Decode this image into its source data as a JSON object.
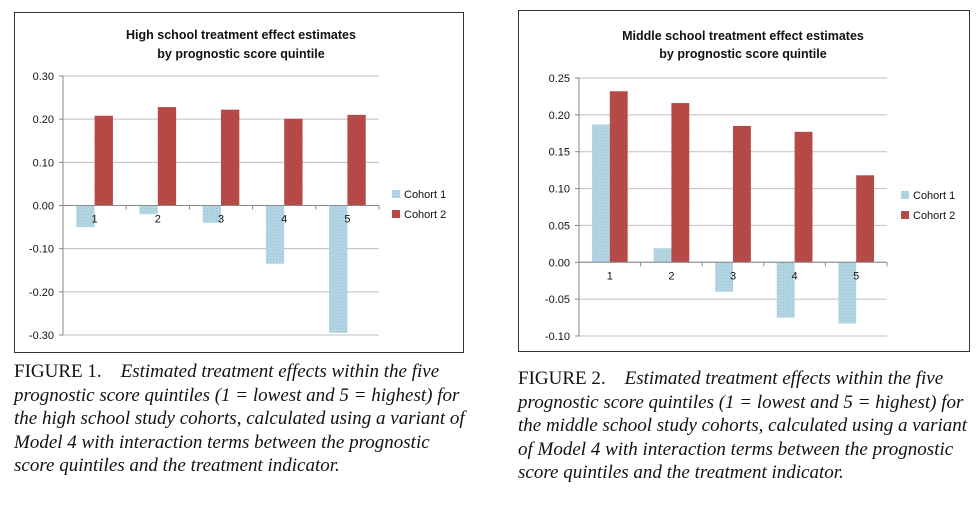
{
  "chart_data": [
    {
      "type": "bar",
      "title_lines": [
        "High school treatment effect estimates",
        "by prognostic score quintile"
      ],
      "categories": [
        "1",
        "2",
        "3",
        "4",
        "5"
      ],
      "series": [
        {
          "name": "Cohort 1",
          "values": [
            -0.05,
            -0.02,
            -0.04,
            -0.135,
            -0.295
          ]
        },
        {
          "name": "Cohort 2",
          "values": [
            0.208,
            0.228,
            0.222,
            0.201,
            0.21
          ]
        }
      ],
      "ylim": [
        -0.3,
        0.3
      ],
      "yticks": [
        0.3,
        0.2,
        0.1,
        0.0,
        -0.1,
        -0.2,
        -0.3
      ],
      "ytick_labels": [
        "0.30",
        "0.20",
        "0.10",
        "0.00",
        "-0.10",
        "-0.20",
        "-0.30"
      ],
      "legend_position": "right",
      "grid": true
    },
    {
      "type": "bar",
      "title_lines": [
        "Middle school treatment effect estimates",
        "by prognostic score quintile"
      ],
      "categories": [
        "1",
        "2",
        "3",
        "4",
        "5"
      ],
      "series": [
        {
          "name": "Cohort 1",
          "values": [
            0.187,
            0.019,
            -0.04,
            -0.075,
            -0.083
          ]
        },
        {
          "name": "Cohort 2",
          "values": [
            0.232,
            0.216,
            0.185,
            0.177,
            0.118
          ]
        }
      ],
      "ylim": [
        -0.1,
        0.25
      ],
      "yticks": [
        0.25,
        0.2,
        0.15,
        0.1,
        0.05,
        0.0,
        -0.05,
        -0.1
      ],
      "ytick_labels": [
        "0.25",
        "0.20",
        "0.15",
        "0.10",
        "0.05",
        "0.00",
        "-0.05",
        "-0.10"
      ],
      "legend_position": "right",
      "grid": true
    }
  ],
  "colors": {
    "cohort1": "#b9d9e6",
    "cohort1_pattern": "#8fbdd0",
    "cohort2": "#c0504d",
    "cohort2_pattern": "#9e3b38",
    "grid": "#bfbfbf",
    "axis": "#888888"
  },
  "captions": [
    {
      "label": "FIGURE 1.",
      "text": "Estimated treatment effects within the five prognostic score quintiles (1 = lowest and 5 = highest) for the high school study cohorts, calculated using a variant of Model 4 with interaction terms between the prognostic score quintiles and the treatment indicator."
    },
    {
      "label": "FIGURE 2.",
      "text": "Estimated treatment effects within the five prognostic score quintiles (1 = lowest and 5 = highest) for the middle school study cohorts, calculated using a variant of Model 4 with interaction terms between the prognostic score quintiles and the treatment indicator."
    }
  ]
}
